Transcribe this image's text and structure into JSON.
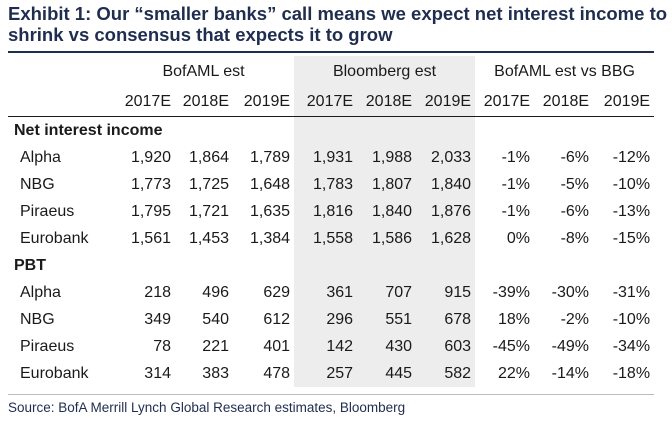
{
  "title": "Exhibit 1: Our “smaller banks” call means we expect net interest income to shrink vs consensus that expects it to grow",
  "column_groups": [
    "BofAML est",
    "Bloomberg est",
    "BofAML est vs BBG"
  ],
  "years": [
    "2017E",
    "2018E",
    "2019E",
    "2017E",
    "2018E",
    "2019E",
    "2017E",
    "2018E",
    "2019E"
  ],
  "sections": [
    {
      "label": "Net interest income",
      "rows": [
        {
          "name": "Alpha",
          "values": [
            "1,920",
            "1,864",
            "1,789",
            "1,931",
            "1,988",
            "2,033",
            "-1%",
            "-6%",
            "-12%"
          ]
        },
        {
          "name": "NBG",
          "values": [
            "1,773",
            "1,725",
            "1,648",
            "1,783",
            "1,807",
            "1,840",
            "-1%",
            "-5%",
            "-10%"
          ]
        },
        {
          "name": "Piraeus",
          "values": [
            "1,795",
            "1,721",
            "1,635",
            "1,816",
            "1,840",
            "1,876",
            "-1%",
            "-6%",
            "-13%"
          ]
        },
        {
          "name": "Eurobank",
          "values": [
            "1,561",
            "1,453",
            "1,384",
            "1,558",
            "1,586",
            "1,628",
            "0%",
            "-8%",
            "-15%"
          ]
        }
      ]
    },
    {
      "label": "PBT",
      "rows": [
        {
          "name": "Alpha",
          "values": [
            "218",
            "496",
            "629",
            "361",
            "707",
            "915",
            "-39%",
            "-30%",
            "-31%"
          ]
        },
        {
          "name": "NBG",
          "values": [
            "349",
            "540",
            "612",
            "296",
            "551",
            "678",
            "18%",
            "-2%",
            "-10%"
          ]
        },
        {
          "name": "Piraeus",
          "values": [
            "78",
            "221",
            "401",
            "142",
            "430",
            "603",
            "-45%",
            "-49%",
            "-34%"
          ]
        },
        {
          "name": "Eurobank",
          "values": [
            "314",
            "383",
            "478",
            "257",
            "445",
            "582",
            "22%",
            "-14%",
            "-18%"
          ]
        }
      ]
    }
  ],
  "source": "Source: BofA Merrill Lynch Global Research estimates, Bloomberg",
  "colors": {
    "title": "#1f2d4f",
    "shade": "#ededed",
    "text": "#1a1a1a"
  }
}
